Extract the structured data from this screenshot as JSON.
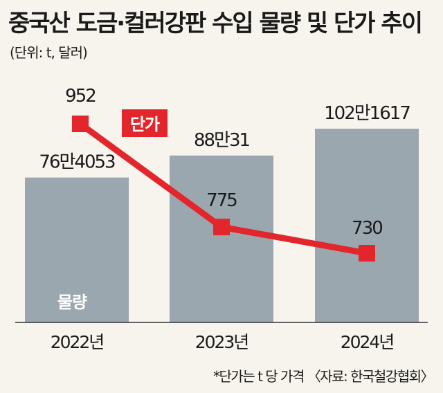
{
  "title": "중국산 도금·컬러강판 수입 물량 및 단가 추이",
  "unit": "(단위: t, 달러)",
  "source": "*단가는 t 당 가격 〈자료: 한국철강협회〉",
  "chart_data": {
    "type": "bar",
    "categories": [
      "2022년",
      "2023년",
      "2024년"
    ],
    "series": [
      {
        "name": "물량",
        "type": "bar",
        "values": [
          764053,
          880031,
          1021617
        ],
        "labels": [
          "76만4053",
          "88만31",
          "102만1617"
        ],
        "color": "#9aa7af"
      },
      {
        "name": "단가",
        "type": "line",
        "values": [
          952,
          775,
          730
        ],
        "labels": [
          "952",
          "775",
          "730"
        ],
        "color": "#e3262b"
      }
    ],
    "title": "중국산 도금·컬러강판 수입 물량 및 단가 추이",
    "xlabel": "",
    "ylabel": "",
    "grid": false,
    "legend": "단가 label beside line; 물량 label inside first bar"
  }
}
